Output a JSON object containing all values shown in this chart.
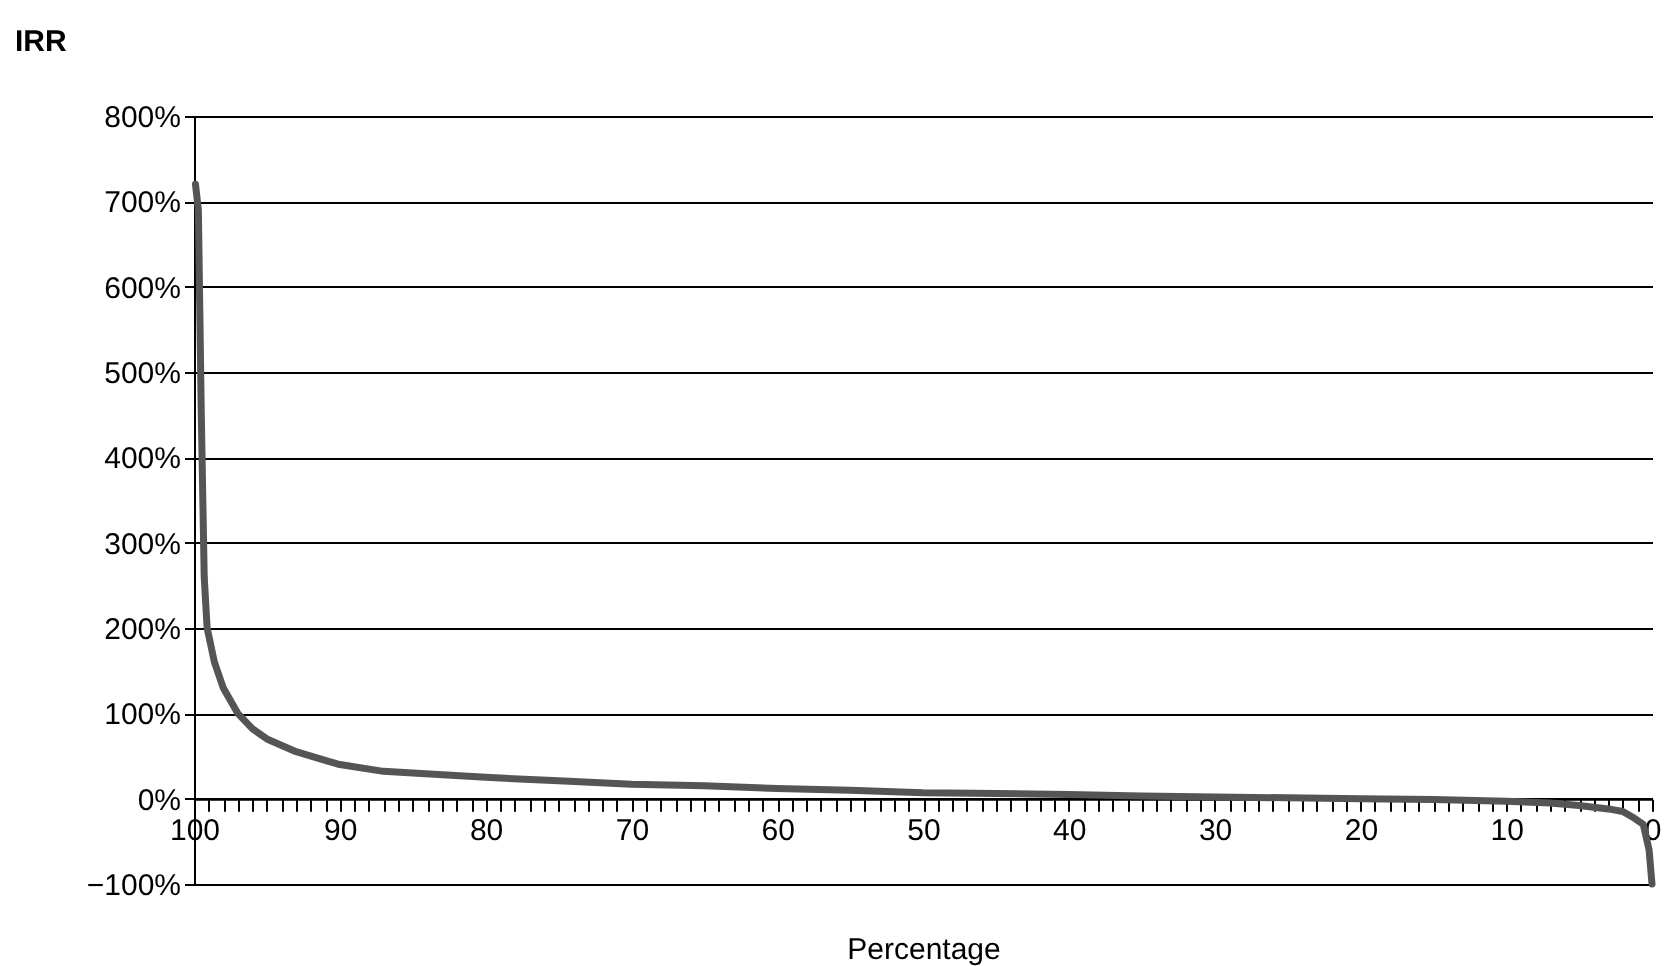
{
  "chart_data": {
    "type": "line",
    "ylabel": "IRR",
    "xlabel": "Percentage",
    "x": [
      99.9,
      99.7,
      99.5,
      99.3,
      99.1,
      98.6,
      98,
      97,
      96,
      95,
      93,
      91,
      90,
      87,
      85,
      80,
      75,
      70,
      65,
      60,
      55,
      50,
      45,
      40,
      35,
      30,
      25,
      20,
      15,
      10,
      7,
      5,
      3,
      2,
      1.2,
      0.6,
      0.2,
      0
    ],
    "series": [
      {
        "color": "#555555",
        "values": [
          720,
          690,
          450,
          260,
          200,
          160,
          130,
          100,
          82,
          70,
          55,
          45,
          40,
          32,
          30,
          25,
          21,
          17,
          15,
          12,
          10,
          7,
          6,
          5,
          3,
          2,
          1,
          0,
          -1,
          -3,
          -5,
          -8,
          -12,
          -15,
          -23,
          -30,
          -60,
          -100
        ]
      }
    ],
    "xlim": [
      100,
      0
    ],
    "xticks": [
      100,
      {
        "value": 99,
        "label": null
      },
      {
        "value": 98,
        "label": null
      },
      {
        "value": 97,
        "label": null
      },
      {
        "value": 96,
        "label": null
      },
      {
        "value": 95,
        "label": null
      },
      {
        "value": 94,
        "label": null
      },
      {
        "value": 93,
        "label": null
      },
      {
        "value": 92,
        "label": null
      },
      {
        "value": 91,
        "label": null
      },
      90,
      {
        "value": 89,
        "label": null
      },
      {
        "value": 88,
        "label": null
      },
      {
        "value": 87,
        "label": null
      },
      {
        "value": 86,
        "label": null
      },
      {
        "value": 85,
        "label": null
      },
      {
        "value": 84,
        "label": null
      },
      {
        "value": 83,
        "label": null
      },
      {
        "value": 82,
        "label": null
      },
      {
        "value": 81,
        "label": null
      },
      80,
      {
        "value": 79,
        "label": null
      },
      {
        "value": 78,
        "label": null
      },
      {
        "value": 77,
        "label": null
      },
      {
        "value": 76,
        "label": null
      },
      {
        "value": 75,
        "label": null
      },
      {
        "value": 74,
        "label": null
      },
      {
        "value": 73,
        "label": null
      },
      {
        "value": 72,
        "label": null
      },
      {
        "value": 71,
        "label": null
      },
      70,
      {
        "value": 69,
        "label": null
      },
      {
        "value": 68,
        "label": null
      },
      {
        "value": 67,
        "label": null
      },
      {
        "value": 66,
        "label": null
      },
      {
        "value": 65,
        "label": null
      },
      {
        "value": 64,
        "label": null
      },
      {
        "value": 63,
        "label": null
      },
      {
        "value": 62,
        "label": null
      },
      {
        "value": 61,
        "label": null
      },
      60,
      {
        "value": 59,
        "label": null
      },
      {
        "value": 58,
        "label": null
      },
      {
        "value": 57,
        "label": null
      },
      {
        "value": 56,
        "label": null
      },
      {
        "value": 55,
        "label": null
      },
      {
        "value": 54,
        "label": null
      },
      {
        "value": 53,
        "label": null
      },
      {
        "value": 52,
        "label": null
      },
      {
        "value": 51,
        "label": null
      },
      50,
      {
        "value": 49,
        "label": null
      },
      {
        "value": 48,
        "label": null
      },
      {
        "value": 47,
        "label": null
      },
      {
        "value": 46,
        "label": null
      },
      {
        "value": 45,
        "label": null
      },
      {
        "value": 44,
        "label": null
      },
      {
        "value": 43,
        "label": null
      },
      {
        "value": 42,
        "label": null
      },
      {
        "value": 41,
        "label": null
      },
      40,
      {
        "value": 39,
        "label": null
      },
      {
        "value": 38,
        "label": null
      },
      {
        "value": 37,
        "label": null
      },
      {
        "value": 36,
        "label": null
      },
      {
        "value": 35,
        "label": null
      },
      {
        "value": 34,
        "label": null
      },
      {
        "value": 33,
        "label": null
      },
      {
        "value": 32,
        "label": null
      },
      {
        "value": 31,
        "label": null
      },
      30,
      {
        "value": 29,
        "label": null
      },
      {
        "value": 28,
        "label": null
      },
      {
        "value": 27,
        "label": null
      },
      {
        "value": 26,
        "label": null
      },
      {
        "value": 25,
        "label": null
      },
      {
        "value": 24,
        "label": null
      },
      {
        "value": 23,
        "label": null
      },
      {
        "value": 22,
        "label": null
      },
      {
        "value": 21,
        "label": null
      },
      20,
      {
        "value": 19,
        "label": null
      },
      {
        "value": 18,
        "label": null
      },
      {
        "value": 17,
        "label": null
      },
      {
        "value": 16,
        "label": null
      },
      {
        "value": 15,
        "label": null
      },
      {
        "value": 14,
        "label": null
      },
      {
        "value": 13,
        "label": null
      },
      {
        "value": 12,
        "label": null
      },
      {
        "value": 11,
        "label": null
      },
      10,
      {
        "value": 9,
        "label": null
      },
      {
        "value": 8,
        "label": null
      },
      {
        "value": 7,
        "label": null
      },
      {
        "value": 6,
        "label": null
      },
      {
        "value": 5,
        "label": null
      },
      {
        "value": 4,
        "label": null
      },
      {
        "value": 3,
        "label": null
      },
      {
        "value": 2,
        "label": null
      },
      {
        "value": 1,
        "label": null
      },
      0
    ],
    "ylim": [
      -100,
      800
    ],
    "yticks": [
      {
        "value": -100,
        "label": "−100%"
      },
      {
        "value": 0,
        "label": "0%"
      },
      {
        "value": 100,
        "label": "100%"
      },
      {
        "value": 200,
        "label": "200%"
      },
      {
        "value": 300,
        "label": "300%"
      },
      {
        "value": 400,
        "label": "400%"
      },
      {
        "value": 500,
        "label": "500%"
      },
      {
        "value": 600,
        "label": "600%"
      },
      {
        "value": 700,
        "label": "700%"
      },
      {
        "value": 800,
        "label": "800%"
      }
    ],
    "grid": "y",
    "marker": "none",
    "line_style": "solid"
  }
}
